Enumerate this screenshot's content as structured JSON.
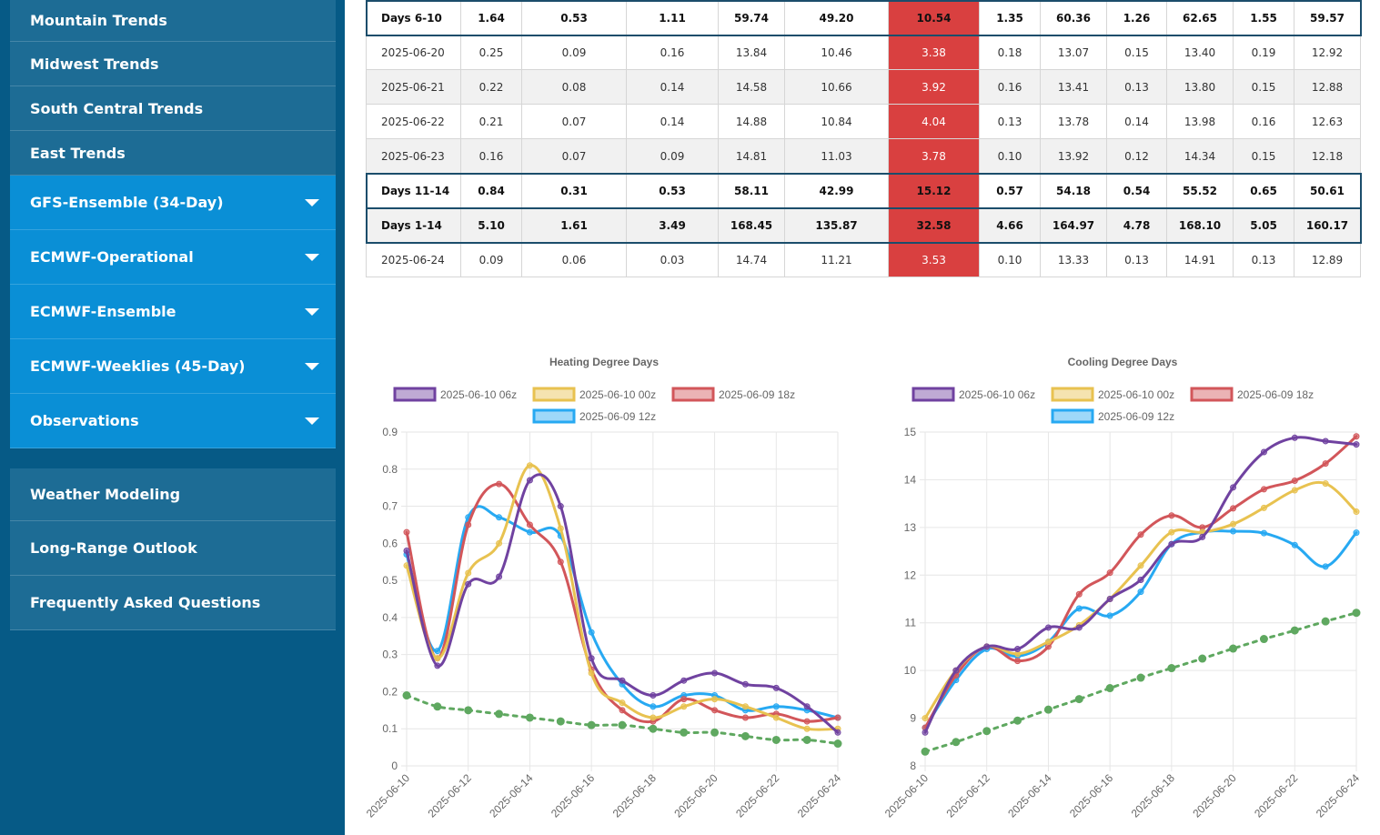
{
  "sidebar": {
    "top_items": [
      {
        "label": "Mountain Trends"
      },
      {
        "label": "Midwest Trends"
      },
      {
        "label": "South Central Trends"
      },
      {
        "label": "East Trends"
      }
    ],
    "model_items": [
      {
        "label": "GFS-Ensemble (34-Day)"
      },
      {
        "label": "ECMWF-Operational"
      },
      {
        "label": "ECMWF-Ensemble"
      },
      {
        "label": "ECMWF-Weeklies (45-Day)"
      },
      {
        "label": "Observations"
      }
    ],
    "bottom_items": [
      {
        "label": "Weather Modeling"
      },
      {
        "label": "Long-Range Outlook"
      },
      {
        "label": "Frequently Asked Questions"
      }
    ]
  },
  "table": {
    "rows": [
      {
        "type": "partial",
        "cells": [
          "",
          "",
          "",
          "",
          "",
          "",
          "",
          "",
          "",
          "",
          "",
          "",
          "",
          ""
        ]
      },
      {
        "type": "summary",
        "cells": [
          "Days 6-10",
          "1.64",
          "0.53",
          "1.11",
          "59.74",
          "49.20",
          "10.54",
          "1.35",
          "60.36",
          "1.26",
          "62.65",
          "1.55",
          "59.57"
        ]
      },
      {
        "type": "day",
        "cells": [
          "2025-06-20",
          "0.25",
          "0.09",
          "0.16",
          "13.84",
          "10.46",
          "3.38",
          "0.18",
          "13.07",
          "0.15",
          "13.40",
          "0.19",
          "12.92"
        ]
      },
      {
        "type": "day",
        "cells": [
          "2025-06-21",
          "0.22",
          "0.08",
          "0.14",
          "14.58",
          "10.66",
          "3.92",
          "0.16",
          "13.41",
          "0.13",
          "13.80",
          "0.15",
          "12.88"
        ]
      },
      {
        "type": "day",
        "cells": [
          "2025-06-22",
          "0.21",
          "0.07",
          "0.14",
          "14.88",
          "10.84",
          "4.04",
          "0.13",
          "13.78",
          "0.14",
          "13.98",
          "0.16",
          "12.63"
        ]
      },
      {
        "type": "day",
        "cells": [
          "2025-06-23",
          "0.16",
          "0.07",
          "0.09",
          "14.81",
          "11.03",
          "3.78",
          "0.10",
          "13.92",
          "0.12",
          "14.34",
          "0.15",
          "12.18"
        ]
      },
      {
        "type": "summary",
        "cells": [
          "Days 11-14",
          "0.84",
          "0.31",
          "0.53",
          "58.11",
          "42.99",
          "15.12",
          "0.57",
          "54.18",
          "0.54",
          "55.52",
          "0.65",
          "50.61"
        ]
      },
      {
        "type": "summary",
        "cells": [
          "Days 1-14",
          "5.10",
          "1.61",
          "3.49",
          "168.45",
          "135.87",
          "32.58",
          "4.66",
          "164.97",
          "4.78",
          "168.10",
          "5.05",
          "160.17"
        ]
      },
      {
        "type": "day",
        "cells": [
          "2025-06-24",
          "0.09",
          "0.06",
          "0.03",
          "14.74",
          "11.21",
          "3.53",
          "0.10",
          "13.33",
          "0.13",
          "14.91",
          "0.13",
          "12.89"
        ]
      }
    ],
    "highlight_column": 6,
    "highlight_color": "#d94040"
  },
  "chart_data": [
    {
      "type": "line",
      "title": "Heating Degree Days",
      "x": [
        "2025-06-10",
        "2025-06-11",
        "2025-06-12",
        "2025-06-13",
        "2025-06-14",
        "2025-06-15",
        "2025-06-16",
        "2025-06-17",
        "2025-06-18",
        "2025-06-19",
        "2025-06-20",
        "2025-06-21",
        "2025-06-22",
        "2025-06-23",
        "2025-06-24"
      ],
      "x_tick_labels": [
        "2025-06-10",
        "2025-06-12",
        "2025-06-14",
        "2025-06-16",
        "2025-06-18",
        "2025-06-20",
        "2025-06-22",
        "2025-06-24"
      ],
      "ylim": [
        0,
        0.9
      ],
      "yticks": [
        0,
        0.1,
        0.2,
        0.3,
        0.4,
        0.5,
        0.6,
        0.7,
        0.8,
        0.9
      ],
      "grid": true,
      "legend_position": "top",
      "series": [
        {
          "name": "2025-06-10 06z",
          "color": "#7042a0",
          "values": [
            0.58,
            0.27,
            0.49,
            0.51,
            0.77,
            0.7,
            0.29,
            0.23,
            0.19,
            0.23,
            0.25,
            0.22,
            0.21,
            0.16,
            0.09
          ]
        },
        {
          "name": "2025-06-10 00z",
          "color": "#e8c250",
          "values": [
            0.54,
            0.29,
            0.52,
            0.6,
            0.81,
            0.64,
            0.25,
            0.17,
            0.13,
            0.16,
            0.18,
            0.16,
            0.13,
            0.1,
            0.1
          ]
        },
        {
          "name": "2025-06-09 18z",
          "color": "#d2565a",
          "values": [
            0.63,
            0.29,
            0.65,
            0.76,
            0.65,
            0.55,
            0.26,
            0.15,
            0.12,
            0.18,
            0.15,
            0.13,
            0.14,
            0.12,
            0.13
          ]
        },
        {
          "name": "2025-06-09 12z",
          "color": "#27a9f2",
          "values": [
            0.57,
            0.31,
            0.67,
            0.67,
            0.63,
            0.62,
            0.36,
            0.22,
            0.16,
            0.19,
            0.19,
            0.15,
            0.16,
            0.15,
            0.13
          ]
        },
        {
          "name": "",
          "color": "#5fa860",
          "dashed": true,
          "values": [
            0.19,
            0.16,
            0.15,
            0.14,
            0.13,
            0.12,
            0.11,
            0.11,
            0.1,
            0.09,
            0.09,
            0.08,
            0.07,
            0.07,
            0.06
          ]
        }
      ]
    },
    {
      "type": "line",
      "title": "Cooling Degree Days",
      "x": [
        "2025-06-10",
        "2025-06-11",
        "2025-06-12",
        "2025-06-13",
        "2025-06-14",
        "2025-06-15",
        "2025-06-16",
        "2025-06-17",
        "2025-06-18",
        "2025-06-19",
        "2025-06-20",
        "2025-06-21",
        "2025-06-22",
        "2025-06-23",
        "2025-06-24"
      ],
      "x_tick_labels": [
        "2025-06-10",
        "2025-06-12",
        "2025-06-14",
        "2025-06-16",
        "2025-06-18",
        "2025-06-20",
        "2025-06-22",
        "2025-06-24"
      ],
      "ylim": [
        8,
        15
      ],
      "yticks": [
        8,
        9,
        10,
        11,
        12,
        13,
        14,
        15
      ],
      "grid": true,
      "legend_position": "top",
      "series": [
        {
          "name": "2025-06-10 06z",
          "color": "#7042a0",
          "values": [
            8.7,
            10.0,
            10.5,
            10.45,
            10.9,
            10.9,
            11.5,
            11.9,
            12.65,
            12.8,
            13.84,
            14.58,
            14.88,
            14.81,
            14.74
          ]
        },
        {
          "name": "2025-06-10 00z",
          "color": "#e8c250",
          "values": [
            9.0,
            10.0,
            10.5,
            10.35,
            10.6,
            10.95,
            11.5,
            12.2,
            12.9,
            12.9,
            13.07,
            13.41,
            13.78,
            13.92,
            13.33
          ]
        },
        {
          "name": "2025-06-09 18z",
          "color": "#d2565a",
          "values": [
            8.8,
            9.9,
            10.5,
            10.2,
            10.5,
            11.6,
            12.05,
            12.85,
            13.25,
            13.0,
            13.4,
            13.8,
            13.98,
            14.34,
            14.91
          ]
        },
        {
          "name": "2025-06-09 12z",
          "color": "#27a9f2",
          "values": [
            8.8,
            9.8,
            10.45,
            10.3,
            10.6,
            11.3,
            11.15,
            11.65,
            12.65,
            12.9,
            12.92,
            12.88,
            12.63,
            12.18,
            12.89
          ]
        },
        {
          "name": "",
          "color": "#5fa860",
          "dashed": true,
          "values": [
            8.3,
            8.5,
            8.73,
            8.95,
            9.18,
            9.4,
            9.63,
            9.85,
            10.05,
            10.25,
            10.46,
            10.66,
            10.84,
            11.03,
            11.21
          ]
        }
      ]
    }
  ]
}
